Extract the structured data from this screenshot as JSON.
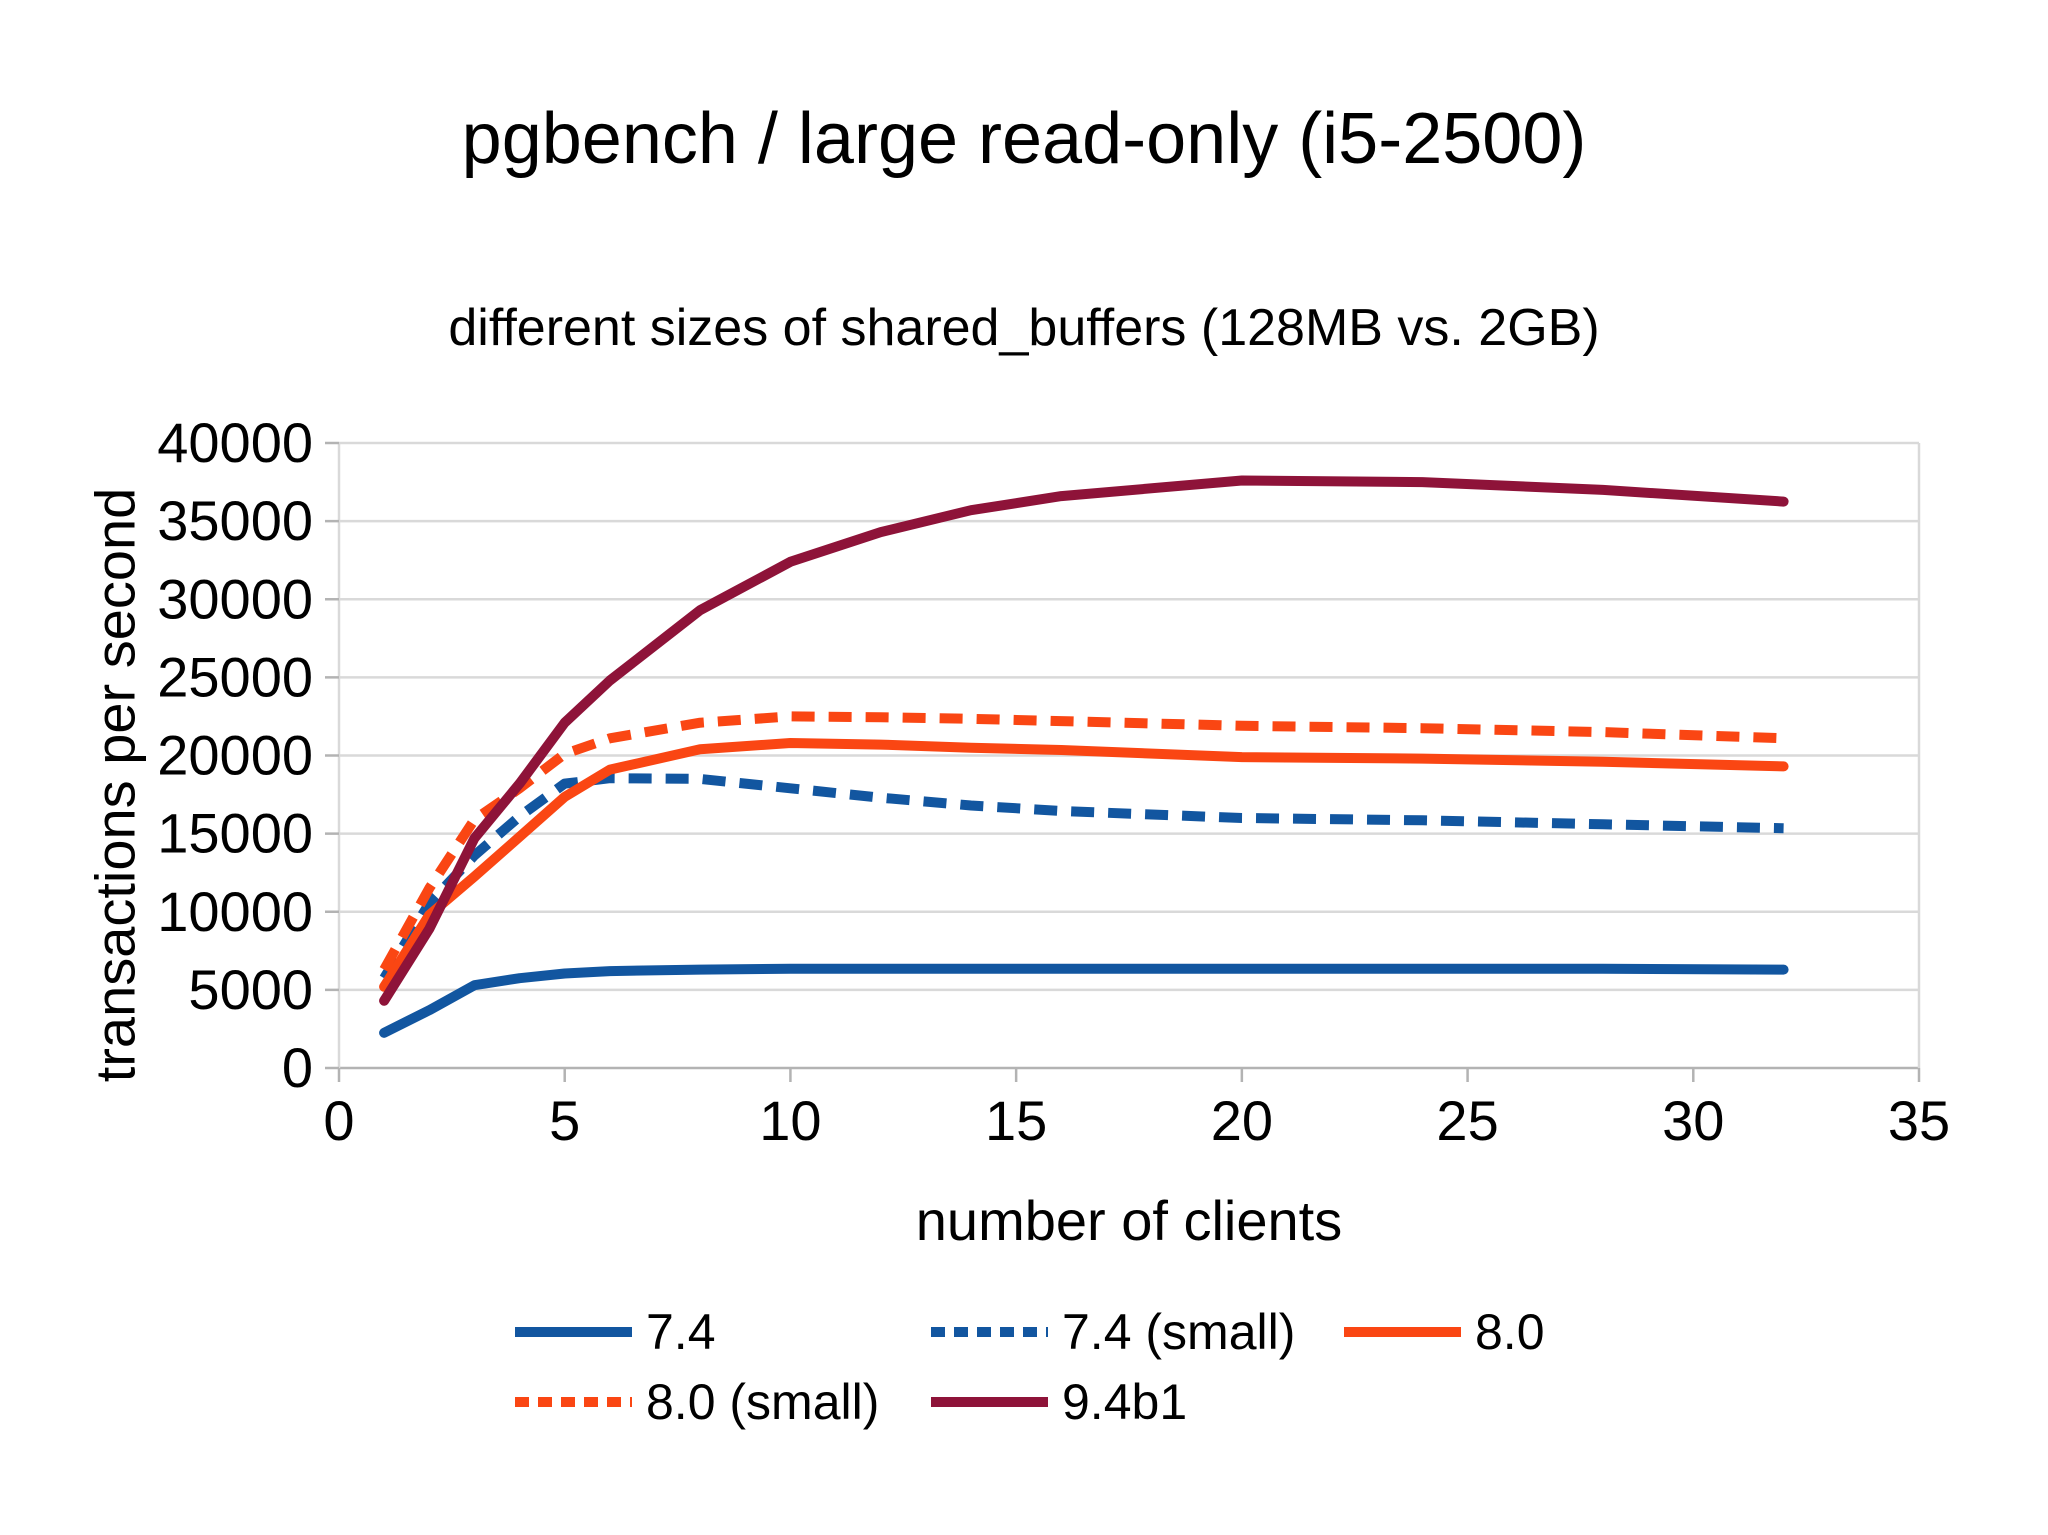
{
  "title": "pgbench / large read-only (i5-2500)",
  "subtitle": "different sizes of shared_buffers (128MB vs. 2GB)",
  "colors": {
    "background": "#ffffff",
    "grid": "#d9d9d9",
    "axis": "#b3b3b3",
    "text": "#000000",
    "blue": "#1256a0",
    "orange": "#fa4613",
    "maroon": "#8e1339"
  },
  "chart_data": {
    "type": "line",
    "title": "pgbench / large read-only (i5-2500)",
    "subtitle": "different sizes of shared_buffers (128MB vs. 2GB)",
    "xlabel": "number of clients",
    "ylabel": "transactions per second",
    "xlim": [
      0,
      35
    ],
    "ylim": [
      0,
      40000
    ],
    "xticks": [
      0,
      5,
      10,
      15,
      20,
      25,
      30,
      35
    ],
    "yticks": [
      0,
      5000,
      10000,
      15000,
      20000,
      25000,
      30000,
      35000,
      40000
    ],
    "grid": "horizontal",
    "legend_position": "bottom",
    "x": [
      1,
      2,
      3,
      4,
      5,
      6,
      8,
      10,
      12,
      14,
      16,
      20,
      24,
      28,
      32
    ],
    "series": [
      {
        "name": "7.4",
        "style": "solid",
        "color": "#1256a0",
        "values": [
          2250,
          3700,
          5300,
          5750,
          6050,
          6200,
          6300,
          6350,
          6350,
          6350,
          6350,
          6350,
          6350,
          6350,
          6300
        ]
      },
      {
        "name": "7.4 (small)",
        "style": "dashed",
        "color": "#1256a0",
        "values": [
          5750,
          10550,
          13600,
          16100,
          18200,
          18550,
          18500,
          17900,
          17300,
          16800,
          16450,
          16000,
          15850,
          15600,
          15350
        ]
      },
      {
        "name": "8.0",
        "style": "solid",
        "color": "#fa4613",
        "values": [
          5200,
          9800,
          12250,
          14800,
          17350,
          19100,
          20400,
          20800,
          20700,
          20500,
          20350,
          19900,
          19800,
          19600,
          19300
        ]
      },
      {
        "name": "8.0 (small)",
        "style": "dashed",
        "color": "#fa4613",
        "values": [
          6300,
          11500,
          15900,
          17900,
          20100,
          21100,
          22100,
          22500,
          22450,
          22350,
          22200,
          21900,
          21750,
          21500,
          21100
        ]
      },
      {
        "name": "9.4b1",
        "style": "solid",
        "color": "#8e1339",
        "values": [
          4300,
          8900,
          14700,
          18200,
          22100,
          24800,
          29300,
          32400,
          34300,
          35700,
          36600,
          37600,
          37500,
          37000,
          36250
        ]
      }
    ]
  }
}
